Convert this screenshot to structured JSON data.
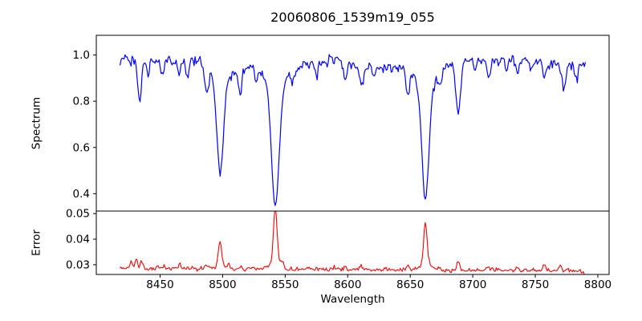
{
  "chart_data": {
    "type": "line",
    "title": "20060806_1539m19_055",
    "xlabel": "Wavelength",
    "x_ticks": [
      8450,
      8500,
      8550,
      8600,
      8650,
      8700,
      8750,
      8800
    ],
    "xlim": [
      8399,
      8809
    ],
    "x_data_range": [
      8418,
      8790
    ],
    "x_step": 0.8,
    "grid": false,
    "legend": "none",
    "random_seed": 20060806,
    "subplots": [
      {
        "name": "spectrum",
        "ylabel": "Spectrum",
        "line_color": "#0000ff",
        "ylim": [
          0.325,
          1.085
        ],
        "y_ticks": [
          1.0,
          0.8,
          0.6,
          0.4
        ],
        "y_tick_labels": [
          "1.0",
          "0.8",
          "0.6",
          "0.4"
        ],
        "continuum_level": 0.972,
        "noise_sigma": 0.012,
        "down_spike_amp": 0.014,
        "continuum_wiggles": [
          {
            "amp": 0.013,
            "period": 21,
            "phase": 0.0
          },
          {
            "amp": 0.009,
            "period": 8.7,
            "phase": 1.3
          },
          {
            "amp": 0.006,
            "period": 47,
            "phase": 0.5
          }
        ],
        "absorption_lines": [
          {
            "wavelength": 8433.5,
            "depth": 0.17,
            "sigma": 1.6,
            "wings": 0
          },
          {
            "wavelength": 8440.0,
            "depth": 0.05,
            "sigma": 1.2,
            "wings": 0
          },
          {
            "wavelength": 8452.0,
            "depth": 0.06,
            "sigma": 1.3,
            "wings": 0
          },
          {
            "wavelength": 8465.0,
            "depth": 0.07,
            "sigma": 1.4,
            "wings": 0
          },
          {
            "wavelength": 8472.0,
            "depth": 0.08,
            "sigma": 1.3,
            "wings": 0
          },
          {
            "wavelength": 8487.0,
            "depth": 0.11,
            "sigma": 1.5,
            "wings": 0
          },
          {
            "wavelength": 8498.0,
            "depth": 0.46,
            "sigma": 2.6,
            "wings": 1
          },
          {
            "wavelength": 8514.0,
            "depth": 0.11,
            "sigma": 1.4,
            "wings": 0
          },
          {
            "wavelength": 8527.0,
            "depth": 0.05,
            "sigma": 1.2,
            "wings": 0
          },
          {
            "wavelength": 8542.1,
            "depth": 0.61,
            "sigma": 3.1,
            "wings": 1
          },
          {
            "wavelength": 8556.0,
            "depth": 0.05,
            "sigma": 1.2,
            "wings": 0
          },
          {
            "wavelength": 8575.0,
            "depth": 0.06,
            "sigma": 1.3,
            "wings": 0
          },
          {
            "wavelength": 8598.0,
            "depth": 0.08,
            "sigma": 1.4,
            "wings": 0
          },
          {
            "wavelength": 8611.0,
            "depth": 0.09,
            "sigma": 1.4,
            "wings": 0
          },
          {
            "wavelength": 8621.0,
            "depth": 0.05,
            "sigma": 1.2,
            "wings": 0
          },
          {
            "wavelength": 8648.0,
            "depth": 0.11,
            "sigma": 1.5,
            "wings": 0
          },
          {
            "wavelength": 8662.1,
            "depth": 0.57,
            "sigma": 2.8,
            "wings": 1
          },
          {
            "wavelength": 8674.0,
            "depth": 0.06,
            "sigma": 1.3,
            "wings": 0
          },
          {
            "wavelength": 8688.5,
            "depth": 0.23,
            "sigma": 1.9,
            "wings": 0
          },
          {
            "wavelength": 8702.0,
            "depth": 0.05,
            "sigma": 1.2,
            "wings": 0
          },
          {
            "wavelength": 8713.0,
            "depth": 0.07,
            "sigma": 1.3,
            "wings": 0
          },
          {
            "wavelength": 8727.0,
            "depth": 0.05,
            "sigma": 1.2,
            "wings": 0
          },
          {
            "wavelength": 8736.0,
            "depth": 0.07,
            "sigma": 1.3,
            "wings": 0
          },
          {
            "wavelength": 8747.0,
            "depth": 0.05,
            "sigma": 1.2,
            "wings": 0
          },
          {
            "wavelength": 8757.0,
            "depth": 0.06,
            "sigma": 1.3,
            "wings": 0
          },
          {
            "wavelength": 8773.0,
            "depth": 0.09,
            "sigma": 1.5,
            "wings": 0
          },
          {
            "wavelength": 8783.0,
            "depth": 0.05,
            "sigma": 1.2,
            "wings": 0
          }
        ]
      },
      {
        "name": "error",
        "ylabel": "Error",
        "line_color": "#ff0000",
        "ylim": [
          0.0262,
          0.051
        ],
        "y_ticks": [
          0.05,
          0.04,
          0.03
        ],
        "y_tick_labels": [
          "0.05",
          "0.04",
          "0.03"
        ],
        "baseline": 0.0282,
        "baseline_slope_per_angstrom": -2.2e-06,
        "noise_sigma": 0.00042,
        "up_spike_amp": 0.0005,
        "end_falloff": {
          "start": 8780,
          "slope": 0.00012
        },
        "peaks": [
          {
            "wavelength": 8427.0,
            "amp": 0.003,
            "sigma": 0.9
          },
          {
            "wavelength": 8431.0,
            "amp": 0.0035,
            "sigma": 0.9
          },
          {
            "wavelength": 8435.0,
            "amp": 0.003,
            "sigma": 0.9
          },
          {
            "wavelength": 8448.0,
            "amp": 0.0012,
            "sigma": 0.8
          },
          {
            "wavelength": 8466.0,
            "amp": 0.0018,
            "sigma": 1.0
          },
          {
            "wavelength": 8487.0,
            "amp": 0.0012,
            "sigma": 0.9
          },
          {
            "wavelength": 8498.0,
            "amp": 0.0092,
            "sigma": 1.3
          },
          {
            "wavelength": 8505.0,
            "amp": 0.0015,
            "sigma": 0.9
          },
          {
            "wavelength": 8514.0,
            "amp": 0.0018,
            "sigma": 0.9
          },
          {
            "wavelength": 8542.1,
            "amp": 0.0215,
            "sigma": 1.4
          },
          {
            "wavelength": 8548.0,
            "amp": 0.002,
            "sigma": 1.0
          },
          {
            "wavelength": 8598.0,
            "amp": 0.0012,
            "sigma": 0.9
          },
          {
            "wavelength": 8611.0,
            "amp": 0.0014,
            "sigma": 0.9
          },
          {
            "wavelength": 8648.0,
            "amp": 0.0016,
            "sigma": 1.0
          },
          {
            "wavelength": 8662.1,
            "amp": 0.017,
            "sigma": 1.3
          },
          {
            "wavelength": 8688.5,
            "amp": 0.0035,
            "sigma": 1.1
          },
          {
            "wavelength": 8713.0,
            "amp": 0.0012,
            "sigma": 0.9
          },
          {
            "wavelength": 8736.0,
            "amp": 0.0014,
            "sigma": 0.9
          },
          {
            "wavelength": 8757.0,
            "amp": 0.0018,
            "sigma": 1.0
          },
          {
            "wavelength": 8770.0,
            "amp": 0.002,
            "sigma": 1.0
          }
        ]
      }
    ]
  },
  "colors": {
    "background": "#ffffff",
    "axes": "#000000",
    "text": "#000000",
    "spectrum_line": "#0000ff",
    "error_line": "#ff0000"
  }
}
